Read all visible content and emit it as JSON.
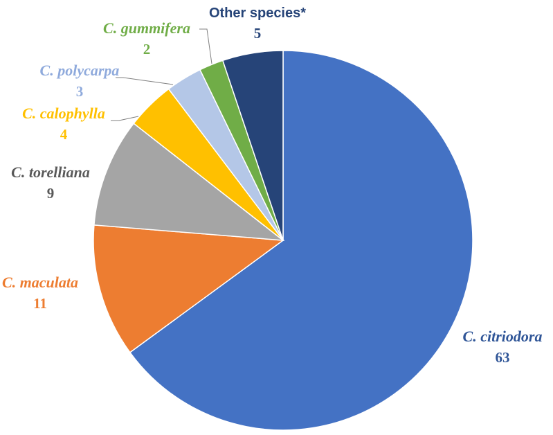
{
  "chart_data": {
    "type": "pie",
    "categories": [
      "C. citriodora",
      "C. maculata",
      "C. torelliana",
      "C. calophylla",
      "C. polycarpa",
      "C. gummifera",
      "Other species*"
    ],
    "values": [
      63,
      11,
      9,
      4,
      3,
      2,
      5
    ],
    "colors": [
      "#4472C4",
      "#ED7D31",
      "#A5A5A5",
      "#FFC000",
      "#B4C7E7",
      "#70AD47",
      "#264478"
    ],
    "label_colors": [
      "#2F5597",
      "#ED7D31",
      "#595959",
      "#FFC000",
      "#8FAADC",
      "#70AD47",
      "#264478"
    ],
    "start_angle_deg": 0,
    "direction": "clockwise",
    "legend": "none",
    "data_labels": "outside, category name above value"
  }
}
